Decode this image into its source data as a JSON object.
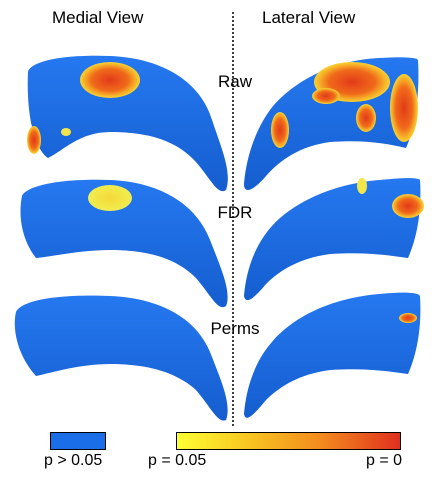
{
  "headers": {
    "medial": "Medial View",
    "lateral": "Lateral View"
  },
  "rows": [
    {
      "label": "Raw"
    },
    {
      "label": "FDR"
    },
    {
      "label": "Perms"
    }
  ],
  "legend": {
    "not_significant_label": "p > 0.05",
    "scale_low_label": "p = 0.05",
    "scale_high_label": "p = 0"
  },
  "colors": {
    "surface": "#1a6ee8",
    "gradient_start": "#ffff33",
    "gradient_mid": "#f59a1f",
    "gradient_end": "#e0301e"
  }
}
